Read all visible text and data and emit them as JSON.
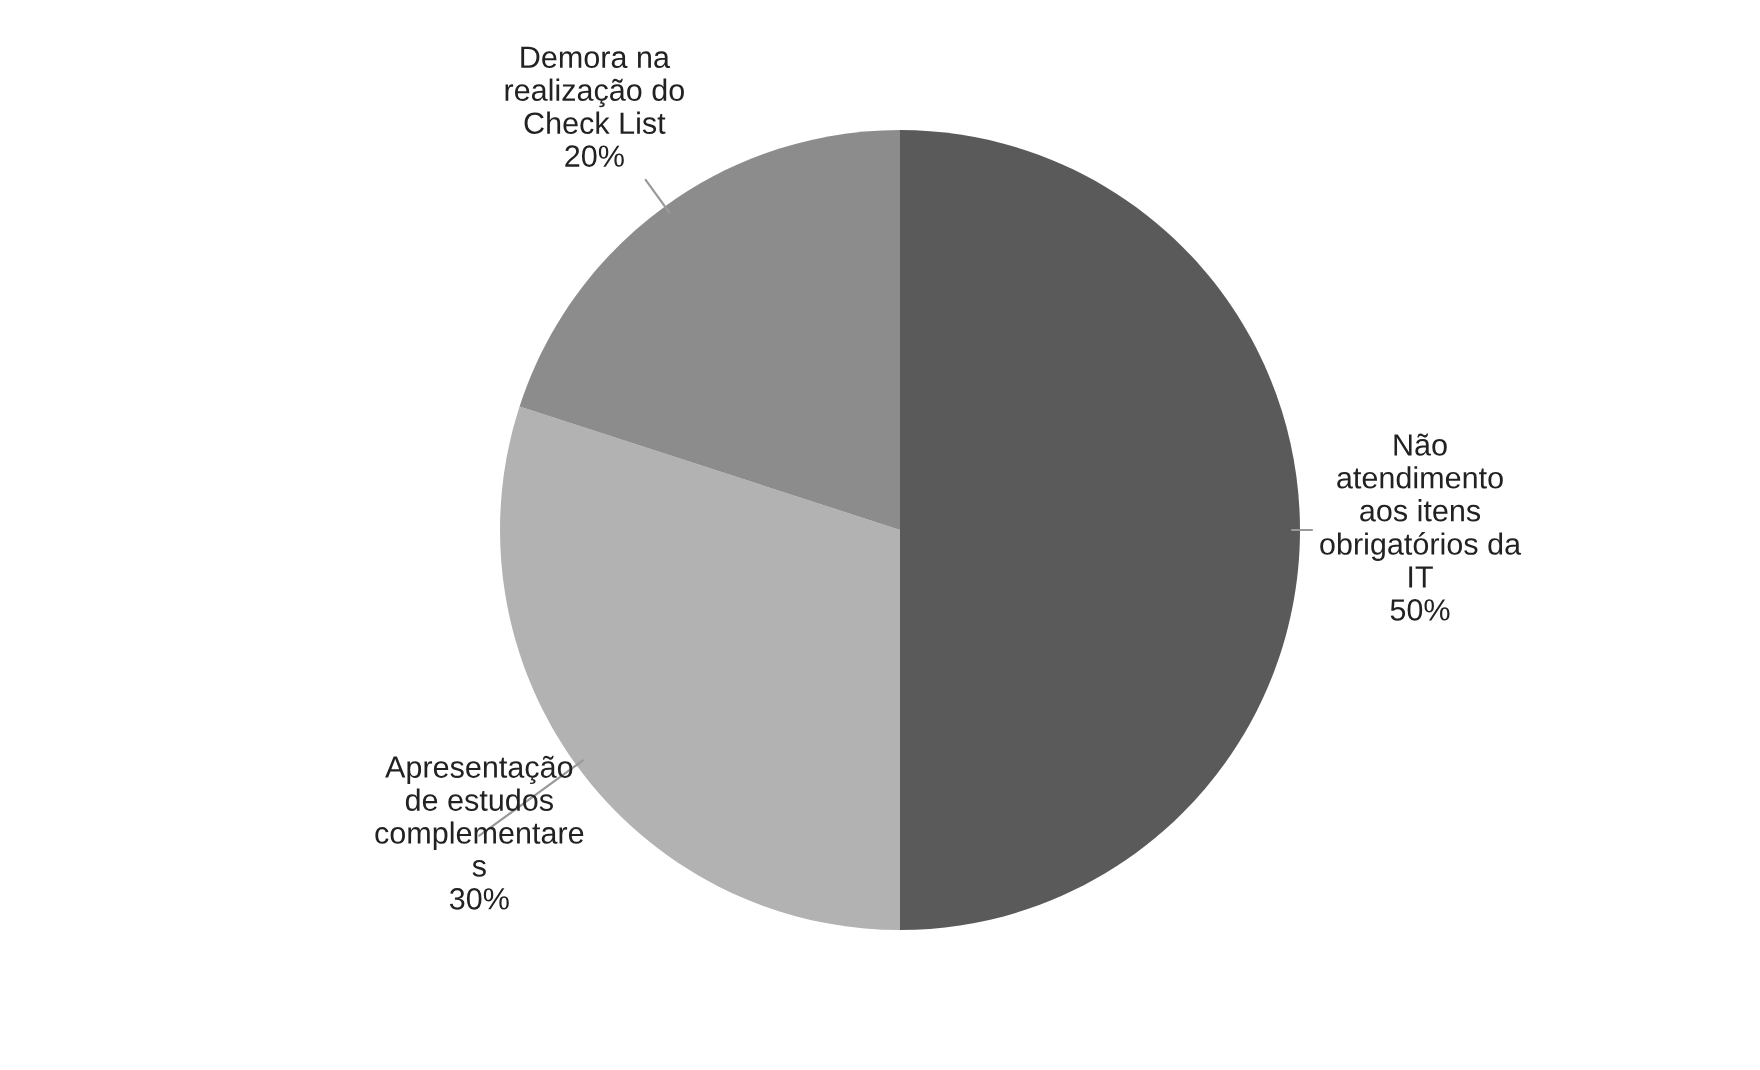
{
  "chart_data": {
    "type": "pie",
    "categories": [
      "Não\natendimento\naos itens\nobrigatórios da\nIT",
      "Apresentação\nde estudos\ncomplementare\ns",
      "Demora na\nrealização do\nCheck List"
    ],
    "values": [
      50,
      30,
      20
    ],
    "value_labels": [
      "50%",
      "30%",
      "20%"
    ],
    "colors": [
      "#5a5a5a",
      "#b2b2b2",
      "#8c8c8c"
    ]
  }
}
